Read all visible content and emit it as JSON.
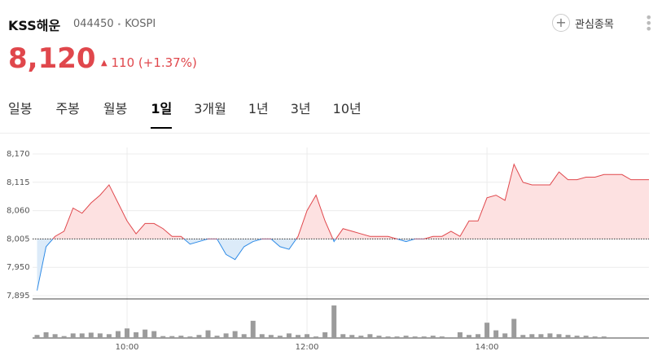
{
  "header": {
    "name": "KSS해운",
    "code": "044450",
    "market": "KOSPI",
    "price": "8,120",
    "change": "110",
    "change_pct": "(+1.37%)",
    "watch_button": "관심종목"
  },
  "tabs": {
    "items": [
      "일봉",
      "주봉",
      "월봉",
      "1일",
      "3개월",
      "1년",
      "3년",
      "10년"
    ],
    "selected": 3
  },
  "chart_data": {
    "type": "line",
    "x": [
      9.0,
      9.1,
      9.2,
      9.3,
      9.4,
      9.5,
      9.6,
      9.7,
      9.8,
      9.9,
      10.0,
      10.1,
      10.2,
      10.3,
      10.4,
      10.5,
      10.6,
      10.7,
      10.8,
      10.9,
      11.0,
      11.1,
      11.2,
      11.3,
      11.4,
      11.5,
      11.6,
      11.7,
      11.8,
      11.9,
      12.0,
      12.1,
      12.2,
      12.3,
      12.4,
      12.5,
      12.6,
      12.7,
      12.8,
      12.9,
      13.0,
      13.1,
      13.2,
      13.3,
      13.4,
      13.5,
      13.6,
      13.7,
      13.8,
      13.9,
      14.0,
      14.1,
      14.2,
      14.3,
      14.4,
      14.5,
      14.6,
      14.7,
      14.8,
      14.9,
      15.0,
      15.1,
      15.2,
      15.3,
      15.4,
      15.5,
      15.6,
      15.7,
      15.8
    ],
    "series": [
      {
        "values": [
          7905,
          7990,
          8010,
          8020,
          8065,
          8055,
          8075,
          8090,
          8110,
          8075,
          8040,
          8015,
          8035,
          8035,
          8025,
          8010,
          8010,
          7995,
          8000,
          8005,
          8005,
          7975,
          7965,
          7990,
          8000,
          8005,
          8005,
          7990,
          7985,
          8010,
          8060,
          8090,
          8040,
          8000,
          8025,
          8020,
          8015,
          8010,
          8010,
          8010,
          8005,
          8000,
          8005,
          8005,
          8010,
          8010,
          8020,
          8010,
          8040,
          8040,
          8085,
          8090,
          8080,
          8150,
          8115,
          8110,
          8110,
          8110,
          8135,
          8120,
          8120,
          8125,
          8125,
          8130,
          8130,
          8130,
          8120,
          8120,
          8120
        ],
        "color_up": "#e0474c",
        "color_down": "#2f8be6"
      }
    ],
    "reference": 8005,
    "xlim": [
      8.95,
      15.8
    ],
    "xticks": [
      {
        "value": 10,
        "label": "10:00"
      },
      {
        "value": 12,
        "label": "12:00"
      },
      {
        "value": 14,
        "label": "14:00"
      }
    ],
    "ylim": [
      7895,
      8170
    ],
    "yticks": [
      {
        "value": 8170,
        "label": "8,170"
      },
      {
        "value": 8115,
        "label": "8,115"
      },
      {
        "value": 8060,
        "label": "8,060"
      },
      {
        "value": 8005,
        "label": "8,005"
      },
      {
        "value": 7950,
        "label": "7,950"
      },
      {
        "value": 7895,
        "label": "7,895"
      }
    ],
    "grid": true,
    "volume": {
      "x": [
        9.0,
        9.1,
        9.2,
        9.3,
        9.4,
        9.5,
        9.6,
        9.7,
        9.8,
        9.9,
        10.0,
        10.1,
        10.2,
        10.3,
        10.4,
        10.5,
        10.6,
        10.7,
        10.8,
        10.9,
        11.0,
        11.1,
        11.2,
        11.3,
        11.4,
        11.5,
        11.6,
        11.7,
        11.8,
        11.9,
        12.0,
        12.1,
        12.2,
        12.3,
        12.4,
        12.5,
        12.6,
        12.7,
        12.8,
        12.9,
        13.0,
        13.1,
        13.2,
        13.3,
        13.4,
        13.5,
        13.6,
        13.7,
        13.8,
        13.9,
        14.0,
        14.1,
        14.2,
        14.3,
        14.4,
        14.5,
        14.6,
        14.7,
        14.8,
        14.9,
        15.0,
        15.1,
        15.2,
        15.3
      ],
      "values": [
        8,
        15,
        10,
        5,
        12,
        12,
        14,
        12,
        10,
        18,
        25,
        15,
        22,
        18,
        5,
        5,
        6,
        4,
        8,
        20,
        6,
        12,
        18,
        10,
        45,
        10,
        8,
        6,
        12,
        8,
        10,
        4,
        15,
        85,
        10,
        8,
        6,
        10,
        6,
        4,
        4,
        6,
        4,
        4,
        6,
        4,
        2,
        15,
        8,
        10,
        40,
        20,
        12,
        50,
        8,
        10,
        10,
        12,
        10,
        8,
        6,
        6,
        4,
        4
      ],
      "ylim": [
        0,
        100
      ],
      "color": "#9b9b9b"
    }
  }
}
